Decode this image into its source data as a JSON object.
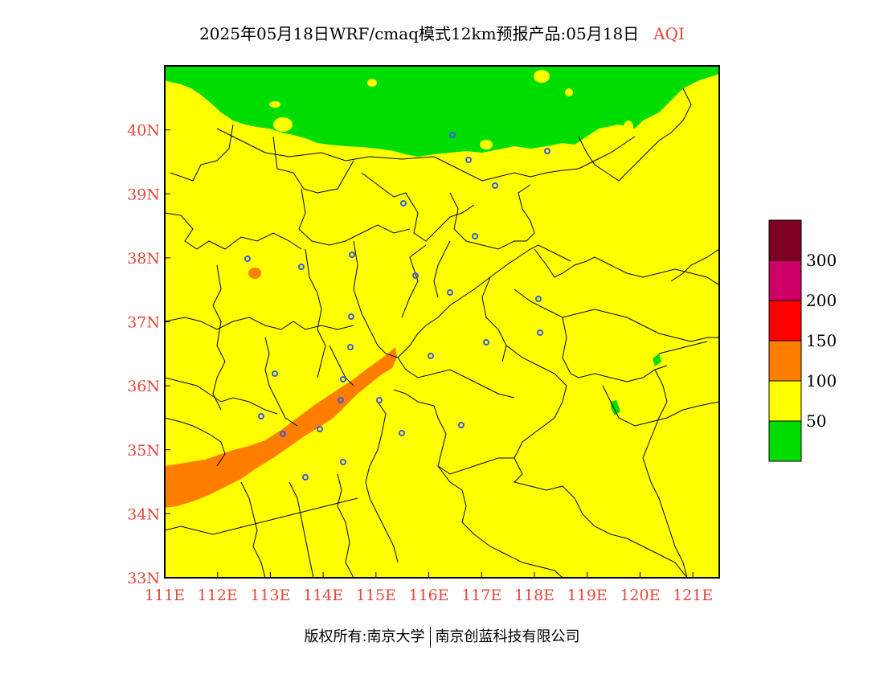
{
  "title": {
    "main": "2025年05月18日WRF/cmaq模式12km预报产品:05月18日",
    "variable": "AQI"
  },
  "map": {
    "lon_range": [
      111,
      121.5
    ],
    "lat_range": [
      33,
      41
    ],
    "x_ticks": [
      "111E",
      "112E",
      "113E",
      "114E",
      "115E",
      "116E",
      "117E",
      "118E",
      "119E",
      "120E",
      "121E"
    ],
    "y_ticks": [
      "33N",
      "34N",
      "35N",
      "36N",
      "37N",
      "38N",
      "39N",
      "40N"
    ],
    "background_category": "50-100 (yellow)",
    "station_marker_color": "#3b5bdb"
  },
  "legend": {
    "colors": [
      "#00dd00",
      "#ffff00",
      "#ff7e00",
      "#ff0000",
      "#cc0066",
      "#7e0023"
    ],
    "labels": [
      "50",
      "100",
      "150",
      "200",
      "300"
    ]
  },
  "copyright": {
    "left": "版权所有:南京大学",
    "right": "南京创蓝科技有限公司"
  }
}
